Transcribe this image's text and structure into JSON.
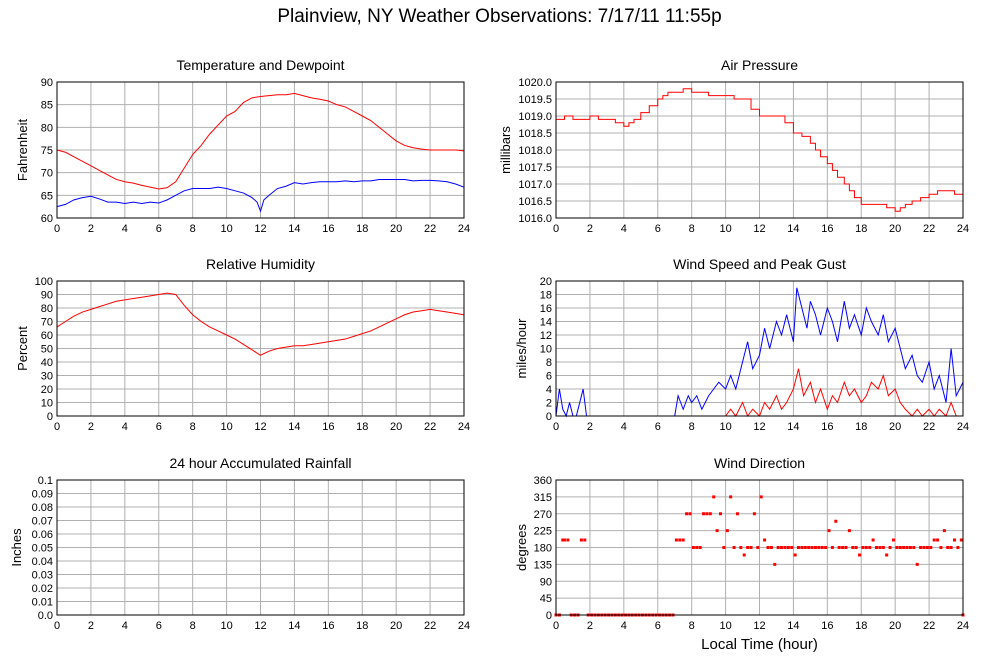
{
  "page": {
    "title": "Plainview, NY Weather Observations: 7/17/11 11:55p"
  },
  "colors": {
    "red": "#ff0000",
    "blue": "#0000ff",
    "grid": "#b0b0b0"
  },
  "chart_data": [
    {
      "id": "temp",
      "type": "line",
      "title": "Temperature and Dewpoint",
      "xlabel": "",
      "ylabel": "Fahrenheit",
      "xlim": [
        0,
        24
      ],
      "ylim": [
        60,
        90
      ],
      "xticks": [
        0,
        2,
        4,
        6,
        8,
        10,
        12,
        14,
        16,
        18,
        20,
        22,
        24
      ],
      "yticks": [
        "60",
        "65",
        "70",
        "75",
        "80",
        "85",
        "90"
      ],
      "grid": true,
      "series": [
        {
          "color": "#ff0000",
          "x": [
            0,
            0.5,
            1,
            1.5,
            2,
            2.5,
            3,
            3.5,
            4,
            4.5,
            5,
            5.5,
            6,
            6.5,
            7,
            7.5,
            8,
            8.5,
            9,
            9.5,
            10,
            10.5,
            11,
            11.5,
            12,
            12.5,
            13,
            13.5,
            14,
            14.5,
            15,
            15.5,
            16,
            16.5,
            17,
            17.5,
            18,
            18.5,
            19,
            19.5,
            20,
            20.5,
            21,
            21.5,
            22,
            22.5,
            23,
            23.5,
            24
          ],
          "y": [
            75,
            74.5,
            73.5,
            72.5,
            71.5,
            70.5,
            69.5,
            68.5,
            68,
            67.7,
            67.2,
            66.8,
            66.4,
            66.7,
            68,
            71,
            74,
            76,
            78.5,
            80.5,
            82.5,
            83.5,
            85.5,
            86.5,
            86.8,
            87,
            87.2,
            87.2,
            87.5,
            87,
            86.5,
            86.2,
            85.8,
            85,
            84.5,
            83.5,
            82.5,
            81.5,
            80,
            78.5,
            77,
            76,
            75.5,
            75.2,
            75,
            75,
            75,
            75,
            74.8
          ]
        },
        {
          "color": "#0000ff",
          "x": [
            0,
            0.5,
            1,
            1.5,
            2,
            2.5,
            3,
            3.5,
            4,
            4.5,
            5,
            5.5,
            6,
            6.5,
            7,
            7.5,
            8,
            8.5,
            9,
            9.5,
            10,
            10.5,
            11,
            11.5,
            11.8,
            12,
            12.2,
            12.5,
            13,
            13.5,
            14,
            14.5,
            15,
            15.5,
            16,
            16.5,
            17,
            17.5,
            18,
            18.5,
            19,
            19.5,
            20,
            20.5,
            21,
            21.5,
            22,
            22.5,
            23,
            23.5,
            24
          ],
          "y": [
            62.5,
            63,
            64,
            64.5,
            64.8,
            64.2,
            63.5,
            63.5,
            63.2,
            63.5,
            63.2,
            63.5,
            63.3,
            64,
            65,
            66,
            66.5,
            66.5,
            66.5,
            66.8,
            66.5,
            66,
            65.5,
            64.5,
            63.5,
            61.5,
            64,
            65,
            66.5,
            67,
            67.8,
            67.5,
            67.8,
            68,
            68,
            68,
            68.2,
            68,
            68.2,
            68.2,
            68.5,
            68.5,
            68.5,
            68.5,
            68.2,
            68.3,
            68.3,
            68.2,
            68,
            67.5,
            66.8
          ]
        }
      ]
    },
    {
      "id": "pressure",
      "type": "line",
      "title": "Air Pressure",
      "xlabel": "",
      "ylabel": "millibars",
      "xlim": [
        0,
        24
      ],
      "ylim": [
        1016.0,
        1020.0
      ],
      "xticks": [
        0,
        2,
        4,
        6,
        8,
        10,
        12,
        14,
        16,
        18,
        20,
        22,
        24
      ],
      "yticks": [
        "1016.0",
        "1016.5",
        "1017.0",
        "1017.5",
        "1018.0",
        "1018.5",
        "1019.0",
        "1019.5",
        "1020.0"
      ],
      "grid": true,
      "series": [
        {
          "color": "#ff0000",
          "step": true,
          "x": [
            0,
            0.5,
            1,
            1.5,
            2,
            2.5,
            3,
            3.5,
            4,
            4.3,
            4.6,
            5,
            5.5,
            6,
            6.3,
            6.6,
            7,
            7.5,
            8,
            8.5,
            9,
            9.5,
            10,
            10.5,
            11,
            11.5,
            12,
            12.5,
            13,
            13.5,
            14,
            14.5,
            15,
            15.3,
            15.6,
            16,
            16.3,
            16.6,
            17,
            17.3,
            17.6,
            18,
            18.5,
            19,
            19.5,
            20,
            20.3,
            20.6,
            21,
            21.5,
            22,
            22.5,
            23,
            23.5,
            24
          ],
          "y": [
            1018.9,
            1019.0,
            1018.9,
            1018.9,
            1019.0,
            1018.9,
            1018.9,
            1018.8,
            1018.7,
            1018.8,
            1018.9,
            1019.1,
            1019.3,
            1019.5,
            1019.6,
            1019.7,
            1019.7,
            1019.8,
            1019.7,
            1019.7,
            1019.6,
            1019.6,
            1019.6,
            1019.5,
            1019.5,
            1019.2,
            1019.0,
            1019.0,
            1019.0,
            1018.8,
            1018.5,
            1018.4,
            1018.2,
            1018.0,
            1017.8,
            1017.6,
            1017.4,
            1017.2,
            1017.0,
            1016.8,
            1016.6,
            1016.4,
            1016.4,
            1016.4,
            1016.3,
            1016.2,
            1016.3,
            1016.4,
            1016.5,
            1016.6,
            1016.7,
            1016.8,
            1016.8,
            1016.7,
            1016.5
          ]
        }
      ]
    },
    {
      "id": "humidity",
      "type": "line",
      "title": "Relative Humidity",
      "xlabel": "",
      "ylabel": "Percent",
      "xlim": [
        0,
        24
      ],
      "ylim": [
        0,
        100
      ],
      "xticks": [
        0,
        2,
        4,
        6,
        8,
        10,
        12,
        14,
        16,
        18,
        20,
        22,
        24
      ],
      "yticks": [
        "0",
        "10",
        "20",
        "30",
        "40",
        "50",
        "60",
        "70",
        "80",
        "90",
        "100"
      ],
      "grid": true,
      "series": [
        {
          "color": "#ff0000",
          "x": [
            0,
            0.5,
            1,
            1.5,
            2,
            2.5,
            3,
            3.5,
            4,
            4.5,
            5,
            5.5,
            6,
            6.5,
            7,
            7.5,
            8,
            8.5,
            9,
            9.5,
            10,
            10.5,
            11,
            11.5,
            12,
            12.5,
            13,
            13.5,
            14,
            14.5,
            15,
            15.5,
            16,
            16.5,
            17,
            17.5,
            18,
            18.5,
            19,
            19.5,
            20,
            20.5,
            21,
            21.5,
            22,
            22.5,
            23,
            23.5,
            24
          ],
          "y": [
            66,
            70,
            74,
            77,
            79,
            81,
            83,
            85,
            86,
            87,
            88,
            89,
            90,
            91,
            90,
            82,
            75,
            70,
            66,
            63,
            60,
            57,
            53,
            49,
            45,
            48,
            50,
            51,
            52,
            52,
            53,
            54,
            55,
            56,
            57,
            59,
            61,
            63,
            66,
            69,
            72,
            75,
            77,
            78,
            79,
            78,
            77,
            76,
            75
          ]
        }
      ]
    },
    {
      "id": "wind",
      "type": "line",
      "title": "Wind Speed and Peak Gust",
      "xlabel": "",
      "ylabel": "miles/hour",
      "xlim": [
        0,
        24
      ],
      "ylim": [
        0,
        20
      ],
      "xticks": [
        0,
        2,
        4,
        6,
        8,
        10,
        12,
        14,
        16,
        18,
        20,
        22,
        24
      ],
      "yticks": [
        "0",
        "2",
        "4",
        "6",
        "8",
        "10",
        "12",
        "14",
        "16",
        "18",
        "20"
      ],
      "grid": true,
      "series": [
        {
          "color": "#0000ff",
          "x": [
            0,
            0.2,
            0.4,
            0.6,
            0.8,
            1,
            1.2,
            1.4,
            1.6,
            1.8,
            2,
            3,
            4,
            5,
            6,
            7,
            7.2,
            7.5,
            7.8,
            8,
            8.3,
            8.6,
            9,
            9.3,
            9.6,
            10,
            10.3,
            10.6,
            11,
            11.3,
            11.6,
            12,
            12.3,
            12.6,
            13,
            13.3,
            13.6,
            14,
            14.2,
            14.5,
            14.8,
            15,
            15.3,
            15.6,
            16,
            16.3,
            16.6,
            17,
            17.3,
            17.6,
            18,
            18.3,
            18.6,
            19,
            19.3,
            19.6,
            20,
            20.3,
            20.6,
            21,
            21.3,
            21.6,
            22,
            22.3,
            22.6,
            23,
            23.3,
            23.6,
            24
          ],
          "y": [
            0,
            4,
            1,
            0,
            2,
            0,
            0,
            2,
            4,
            0,
            0,
            0,
            0,
            0,
            0,
            0,
            3,
            1,
            3,
            2,
            3,
            1,
            3,
            4,
            5,
            4,
            6,
            4,
            8,
            11,
            7,
            9,
            13,
            10,
            14,
            12,
            15,
            11,
            19,
            16,
            13,
            17,
            15,
            12,
            16,
            14,
            11,
            17,
            13,
            15,
            12,
            16,
            14,
            12,
            15,
            11,
            13,
            10,
            7,
            9,
            6,
            5,
            8,
            4,
            6,
            2,
            10,
            3,
            5
          ]
        },
        {
          "color": "#ff0000",
          "x": [
            0,
            10,
            10.3,
            10.6,
            11,
            11.3,
            11.6,
            12,
            12.3,
            12.6,
            13,
            13.3,
            13.6,
            14,
            14.3,
            14.6,
            15,
            15.3,
            15.6,
            16,
            16.3,
            16.6,
            17,
            17.3,
            17.6,
            18,
            18.3,
            18.6,
            19,
            19.3,
            19.6,
            20,
            20.3,
            20.6,
            21,
            21.3,
            21.6,
            22,
            22.3,
            22.6,
            23,
            23.3,
            23.6,
            24
          ],
          "y": [
            0,
            0,
            1,
            0,
            2,
            0,
            1,
            0,
            2,
            1,
            3,
            1,
            2,
            4,
            7,
            3,
            5,
            2,
            4,
            1,
            3,
            2,
            5,
            3,
            4,
            2,
            3,
            5,
            4,
            6,
            3,
            4,
            2,
            1,
            0,
            1,
            0,
            1,
            0,
            1,
            0,
            2,
            0,
            0
          ]
        }
      ]
    },
    {
      "id": "rain",
      "type": "line",
      "title": "24 hour Accumulated Rainfall",
      "xlabel": "",
      "ylabel": "Inches",
      "xlim": [
        0,
        24
      ],
      "ylim": [
        0,
        0.1
      ],
      "xticks": [
        0,
        2,
        4,
        6,
        8,
        10,
        12,
        14,
        16,
        18,
        20,
        22,
        24
      ],
      "yticks": [
        "0.0",
        "0.01",
        "0.02",
        "0.03",
        "0.04",
        "0.05",
        "0.06",
        "0.07",
        "0.08",
        "0.09",
        "0.1"
      ],
      "grid": true,
      "series": [
        {
          "color": "#ff0000",
          "x": [
            0,
            24
          ],
          "y": [
            0,
            0
          ]
        }
      ]
    },
    {
      "id": "direction",
      "type": "scatter",
      "title": "Wind Direction",
      "xlabel": "Local Time (hour)",
      "ylabel": "degrees",
      "xlim": [
        0,
        24
      ],
      "ylim": [
        0,
        360
      ],
      "xticks": [
        0,
        2,
        4,
        6,
        8,
        10,
        12,
        14,
        16,
        18,
        20,
        22,
        24
      ],
      "yticks": [
        "0",
        "45",
        "90",
        "135",
        "180",
        "225",
        "270",
        "315",
        "360"
      ],
      "grid": true,
      "series": [
        {
          "color": "#ff0000",
          "x": [
            0,
            0.2,
            0.4,
            0.5,
            0.7,
            0.9,
            1.1,
            1.3,
            1.5,
            1.7,
            1.9,
            2.1,
            2.3,
            2.5,
            2.7,
            2.9,
            3.1,
            3.3,
            3.5,
            3.7,
            3.9,
            4.1,
            4.3,
            4.5,
            4.7,
            4.9,
            5.1,
            5.3,
            5.5,
            5.7,
            5.9,
            6.1,
            6.3,
            6.5,
            6.7,
            6.9,
            7.1,
            7.3,
            7.5,
            7.7,
            7.9,
            8.1,
            8.3,
            8.5,
            8.7,
            8.9,
            9.1,
            9.3,
            9.5,
            9.7,
            9.9,
            10.1,
            10.3,
            10.5,
            10.7,
            10.9,
            11.1,
            11.3,
            11.5,
            11.7,
            11.9,
            12.1,
            12.3,
            12.5,
            12.7,
            12.9,
            13.1,
            13.3,
            13.5,
            13.7,
            13.9,
            14.1,
            14.3,
            14.5,
            14.7,
            14.9,
            15.1,
            15.3,
            15.5,
            15.7,
            15.9,
            16.1,
            16.3,
            16.5,
            16.7,
            16.9,
            17.1,
            17.3,
            17.5,
            17.7,
            17.9,
            18.1,
            18.3,
            18.5,
            18.7,
            18.9,
            19.1,
            19.3,
            19.5,
            19.7,
            19.9,
            20.1,
            20.3,
            20.5,
            20.7,
            20.9,
            21.1,
            21.3,
            21.5,
            21.7,
            21.9,
            22.1,
            22.3,
            22.5,
            22.7,
            22.9,
            23.1,
            23.3,
            23.5,
            23.7,
            23.9,
            24
          ],
          "y": [
            0,
            0,
            200,
            200,
            200,
            0,
            0,
            0,
            200,
            200,
            0,
            0,
            0,
            0,
            0,
            0,
            0,
            0,
            0,
            0,
            0,
            0,
            0,
            0,
            0,
            0,
            0,
            0,
            0,
            0,
            0,
            0,
            0,
            0,
            0,
            0,
            200,
            200,
            200,
            270,
            270,
            180,
            180,
            180,
            270,
            270,
            270,
            315,
            225,
            270,
            180,
            225,
            315,
            180,
            270,
            180,
            160,
            180,
            180,
            270,
            180,
            315,
            200,
            180,
            180,
            135,
            180,
            180,
            180,
            180,
            180,
            160,
            180,
            180,
            180,
            180,
            180,
            180,
            180,
            180,
            180,
            225,
            180,
            250,
            180,
            180,
            180,
            225,
            180,
            180,
            160,
            180,
            180,
            180,
            200,
            180,
            180,
            180,
            160,
            180,
            200,
            180,
            180,
            180,
            180,
            180,
            180,
            135,
            180,
            180,
            180,
            180,
            200,
            200,
            180,
            225,
            180,
            180,
            200,
            180,
            200,
            0
          ]
        }
      ]
    }
  ]
}
